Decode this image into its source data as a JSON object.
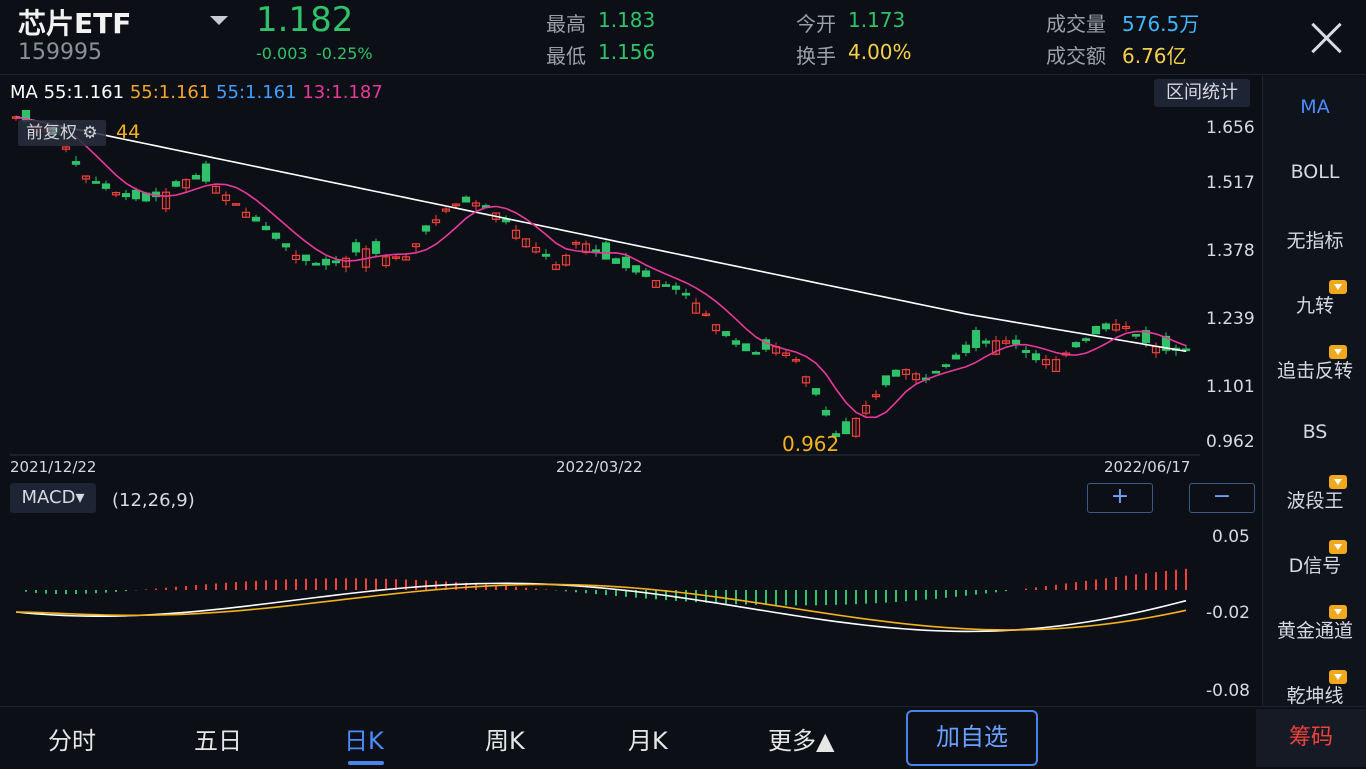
{
  "header": {
    "name": "芯片ETF",
    "code": "159995",
    "price": "1.182",
    "change": "-0.003",
    "change_pct": "-0.25%",
    "stats": [
      {
        "label": "最高",
        "value": "1.183",
        "color": "#2fc26a"
      },
      {
        "label": "最低",
        "value": "1.156",
        "color": "#2fc26a"
      },
      {
        "label": "今开",
        "value": "1.173",
        "color": "#2fc26a"
      },
      {
        "label": "换手",
        "value": "4.00%",
        "color": "#f5d14a"
      },
      {
        "label": "成交量",
        "value": "576.5万",
        "color": "#3fb6ff"
      },
      {
        "label": "成交额",
        "value": "6.76亿",
        "color": "#f5d14a"
      }
    ]
  },
  "ma_legend": {
    "prefix": "MA 55:1.161",
    "items": [
      {
        "text": "55:1.161",
        "color": "#f2a52b"
      },
      {
        "text": "55:1.161",
        "color": "#3fa0ff"
      },
      {
        "text": "13:1.187",
        "color": "#e8399a"
      }
    ]
  },
  "kline": {
    "qujian_label": "区间统计",
    "fuquan_label": "前复权",
    "high_label": "44",
    "low_label": "0.962",
    "y_ticks": [
      "1.656",
      "1.517",
      "1.378",
      "1.239",
      "1.101",
      "0.962"
    ],
    "dates": [
      "2021/12/22",
      "2022/03/22",
      "2022/06/17"
    ]
  },
  "macd": {
    "button_label": "MACD",
    "params": "(12,26,9)",
    "y_ticks": [
      "0.05",
      "-0.02",
      "-0.08"
    ],
    "zoom_in": "+",
    "zoom_out": "−"
  },
  "sidebar": [
    "MA",
    "BOLL",
    "无指标",
    "九转",
    "追击反转",
    "BS",
    "波段王",
    "D信号",
    "黄金通道",
    "乾坤线"
  ],
  "sidebar_vip": [
    false,
    false,
    false,
    true,
    true,
    false,
    true,
    true,
    true,
    true
  ],
  "bottom_tabs": [
    "分时",
    "五日",
    "日K",
    "周K",
    "月K",
    "更多▲"
  ],
  "add_button": "加自选",
  "chouma": "筹码",
  "colors": {
    "up": "#f0413a",
    "down": "#2fc26a",
    "ma_white": "#ffffff",
    "ma_pink": "#e8399a",
    "dea": "#f2b21c",
    "accent": "#4a84e8"
  },
  "chart_data": {
    "type": "candlestick",
    "ylim": [
      0.962,
      1.656
    ],
    "x_labels": [
      "2021/12/22",
      "2022/03/22",
      "2022/06/17"
    ],
    "close_trend": [
      1.68,
      1.66,
      1.64,
      1.56,
      1.53,
      1.51,
      1.5,
      1.52,
      1.55,
      1.54,
      1.5,
      1.46,
      1.42,
      1.38,
      1.36,
      1.37,
      1.4,
      1.38,
      1.38,
      1.44,
      1.49,
      1.5,
      1.48,
      1.44,
      1.4,
      1.36,
      1.42,
      1.38,
      1.36,
      1.34,
      1.32,
      1.3,
      1.25,
      1.2,
      1.17,
      1.19,
      1.16,
      1.08,
      0.98,
      1.05,
      1.1,
      1.14,
      1.12,
      1.15,
      1.18,
      1.2,
      1.2,
      1.16,
      1.16,
      1.19,
      1.22,
      1.24,
      1.2,
      1.18,
      1.18
    ],
    "macd_ylim": [
      -0.1,
      0.06
    ]
  }
}
